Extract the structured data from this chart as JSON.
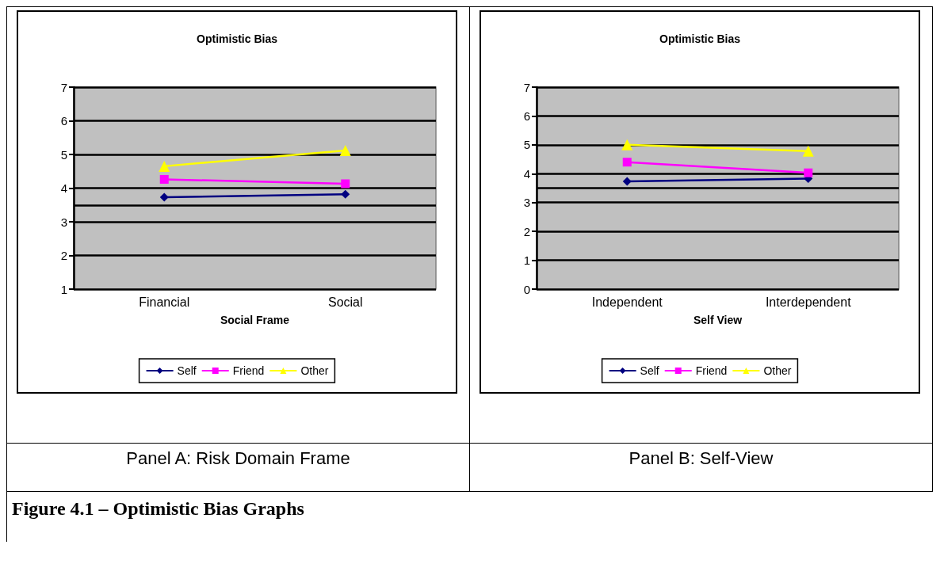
{
  "chart_data": [
    {
      "type": "line",
      "title": "Optimistic Bias",
      "xlabel": "Social Frame",
      "categories": [
        "Financial",
        "Social"
      ],
      "series": [
        {
          "name": "Self",
          "color": "#000080",
          "marker": "diamond",
          "values": [
            3.73,
            3.82
          ]
        },
        {
          "name": "Friend",
          "color": "#ff00ff",
          "marker": "square",
          "values": [
            4.26,
            4.13
          ]
        },
        {
          "name": "Other",
          "color": "#ffff00",
          "marker": "triangle",
          "values": [
            4.65,
            5.12
          ]
        }
      ],
      "ylim": [
        1,
        7
      ],
      "yticks": [
        1,
        2,
        3,
        4,
        5,
        6,
        7
      ],
      "grid": "y",
      "legend": "bottom",
      "ref_lines": [
        {
          "axis": "y",
          "value": 3.5,
          "color": "#000000"
        }
      ],
      "annotations": [
        "Panel A: Risk Domain Frame",
        "Figure 4.1 – Optimistic Bias Graphs"
      ]
    },
    {
      "type": "line",
      "title": "Optimistic Bias",
      "xlabel": "Self View",
      "categories": [
        "Independent",
        "Interdependent"
      ],
      "series": [
        {
          "name": "Self",
          "color": "#000080",
          "marker": "diamond",
          "values": [
            3.73,
            3.83
          ]
        },
        {
          "name": "Friend",
          "color": "#ff00ff",
          "marker": "square",
          "values": [
            4.4,
            4.03
          ]
        },
        {
          "name": "Other",
          "color": "#ffff00",
          "marker": "triangle",
          "values": [
            5.0,
            4.78
          ]
        }
      ],
      "ylim": [
        0,
        7
      ],
      "yticks": [
        0,
        1,
        2,
        3,
        4,
        5,
        6,
        7
      ],
      "grid": "y",
      "legend": "bottom",
      "ref_lines": [
        {
          "axis": "y",
          "value": 3.5,
          "color": "#000000"
        }
      ],
      "annotations": [
        "Panel B: Self-View"
      ]
    }
  ]
}
